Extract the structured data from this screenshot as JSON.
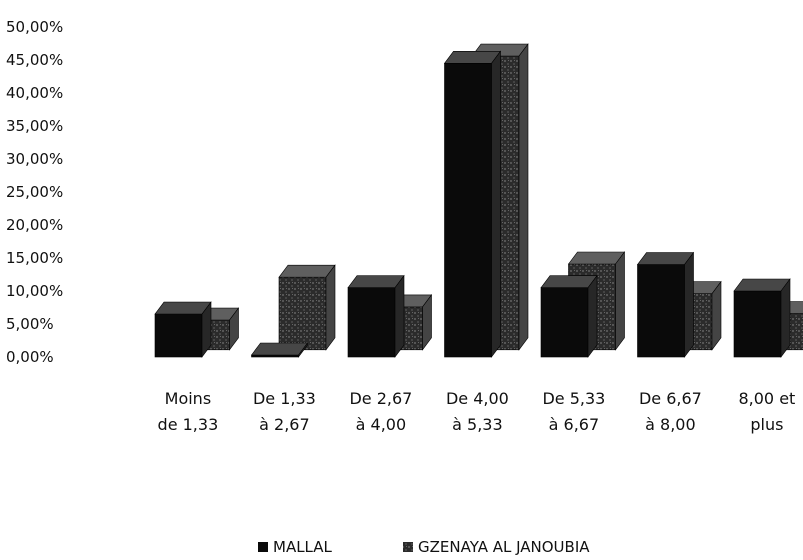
{
  "chart_data": {
    "type": "bar",
    "style": "3d-clustered-column",
    "categories": [
      [
        "Moins",
        "de 1,33"
      ],
      [
        "De 1,33",
        "à 2,67"
      ],
      [
        "De 2,67",
        "à 4,00"
      ],
      [
        "De 4,00",
        "à 5,33"
      ],
      [
        "De 5,33",
        "à 6,67"
      ],
      [
        "De 6,67",
        "à 8,00"
      ],
      [
        "8,00 et",
        "plus"
      ]
    ],
    "series": [
      {
        "name": "MALLAL",
        "color": "#0a0a0a",
        "values": [
          6.5,
          0.0,
          10.5,
          44.5,
          10.5,
          14.0,
          10.0
        ]
      },
      {
        "name": "GZENAYA AL JANOUBIA",
        "color": "#2a2a2a",
        "values": [
          4.5,
          11.0,
          6.5,
          44.5,
          13.0,
          8.5,
          5.5
        ]
      }
    ],
    "y_ticks": [
      "0,00%",
      "5,00%",
      "10,00%",
      "15,00%",
      "20,00%",
      "25,00%",
      "30,00%",
      "35,00%",
      "40,00%",
      "45,00%",
      "50,00%"
    ],
    "ylim": [
      0,
      50
    ],
    "grid": false,
    "legend_position": "bottom"
  }
}
